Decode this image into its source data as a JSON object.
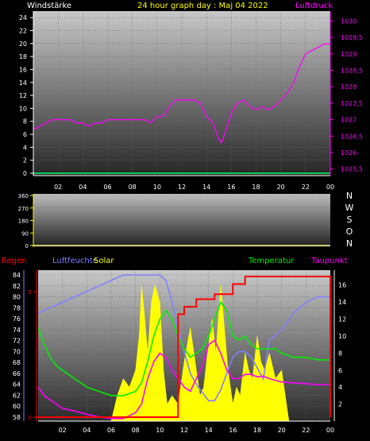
{
  "header": {
    "left_label": "Windstärke",
    "title": "24 hour graph day : Maj 04 2022",
    "right_label": "Luftdruck"
  },
  "colors": {
    "pressure": "#ff00ff",
    "wind": "#00ff66",
    "humidity": "#8080ff",
    "solar": "#ffff00",
    "temperature": "#00ee00",
    "dewpoint": "#ff00ff",
    "rain": "#ff0000",
    "header_left": "#ffffff",
    "header_title": "#ffff00",
    "header_right": "#ff00ff"
  },
  "chart_data": [
    {
      "type": "line",
      "x_ticks": [
        "02",
        "04",
        "06",
        "08",
        "10",
        "12",
        "14",
        "16",
        "18",
        "20",
        "22",
        "00"
      ],
      "y_left_ticks": [
        "0",
        "2",
        "4",
        "6",
        "8",
        "10",
        "12",
        "14",
        "16",
        "18",
        "20",
        "22",
        "24"
      ],
      "y_right_ticks": [
        "1025,5",
        "1026",
        "1026,5",
        "1027",
        "1027,5",
        "1028",
        "1028,5",
        "1029",
        "1029,5",
        "1030"
      ],
      "ylim_left": [
        0,
        25
      ],
      "ylim_right": [
        1025.3,
        1030.3
      ],
      "series": [
        {
          "name": "Luftdruck",
          "axis": "right",
          "x": [
            0,
            0.5,
            1,
            1.5,
            2,
            2.5,
            3,
            3.5,
            4,
            4.5,
            5,
            5.5,
            6,
            6.5,
            7,
            7.5,
            8,
            8.5,
            9,
            9.5,
            10,
            10.5,
            11,
            11.5,
            12,
            12.5,
            13,
            13.5,
            14,
            14.5,
            15,
            15.2,
            15.5,
            16,
            16.5,
            17,
            17.5,
            18,
            18.5,
            19,
            19.5,
            20,
            20.5,
            21,
            21.5,
            22,
            22.5,
            23,
            23.5,
            24
          ],
          "y": [
            1026.7,
            1026.8,
            1026.9,
            1027.0,
            1027.0,
            1027.0,
            1027.0,
            1026.9,
            1026.9,
            1026.8,
            1026.9,
            1026.9,
            1027.0,
            1027.0,
            1027.0,
            1027.0,
            1027.0,
            1027.0,
            1027.0,
            1026.9,
            1027.1,
            1027.1,
            1027.4,
            1027.6,
            1027.6,
            1027.6,
            1027.6,
            1027.5,
            1027.1,
            1026.9,
            1026.4,
            1026.3,
            1026.6,
            1027.2,
            1027.5,
            1027.6,
            1027.4,
            1027.3,
            1027.4,
            1027.3,
            1027.4,
            1027.6,
            1027.8,
            1028.1,
            1028.6,
            1029.0,
            1029.1,
            1029.2,
            1029.3,
            1029.3
          ]
        },
        {
          "name": "Windstärke",
          "axis": "left",
          "x": [
            0,
            24
          ],
          "y": [
            0,
            0
          ]
        }
      ]
    },
    {
      "type": "area",
      "y_ticks": [
        "0",
        "90",
        "180",
        "270",
        "360"
      ],
      "ylim": [
        0,
        360
      ],
      "direction_labels": [
        "N",
        "W",
        "S",
        "O",
        "N"
      ],
      "series": [
        {
          "name": "Windrichtung",
          "x": [
            0,
            24
          ],
          "y": [
            0,
            0
          ]
        }
      ]
    },
    {
      "type": "line",
      "x_ticks": [
        "02",
        "04",
        "06",
        "08",
        "10",
        "12",
        "14",
        "16",
        "18",
        "20",
        "22",
        "00"
      ],
      "y_left_ticks": [
        "58",
        "60",
        "62",
        "64",
        "66",
        "68",
        "70",
        "72",
        "74",
        "76",
        "78",
        "80",
        "82",
        "84"
      ],
      "y_right_ticks": [
        "2",
        "4",
        "6",
        "8",
        "10",
        "12",
        "14",
        "16"
      ],
      "rain_ticks": [
        "5",
        "0"
      ],
      "legend": [
        "Regen",
        "Luftfeuchte",
        "Solar",
        "Temperatur",
        "Taupunkt"
      ],
      "series": [
        {
          "name": "Luftfeuchte",
          "axis": "left",
          "x": [
            0,
            1,
            2,
            3,
            4,
            5,
            6,
            7,
            8,
            9,
            10,
            10.5,
            11,
            11.5,
            12,
            12.5,
            13,
            14,
            14.5,
            15,
            15.5,
            16,
            16.5,
            17,
            17.5,
            18,
            18.5,
            19,
            20,
            21,
            22,
            23,
            24
          ],
          "y": [
            77,
            78,
            79,
            80,
            81,
            82,
            83,
            84,
            84,
            84,
            84,
            83,
            79,
            74,
            70,
            66,
            64,
            61,
            61,
            63,
            66,
            69,
            70,
            70,
            69,
            67,
            65,
            72,
            74,
            77,
            79,
            80,
            80
          ]
        },
        {
          "name": "Temperatur",
          "axis": "right",
          "x": [
            0,
            0.5,
            1,
            1.5,
            2,
            3,
            4,
            5,
            6,
            7,
            8,
            8.5,
            9,
            9.5,
            10,
            10.5,
            11,
            11.5,
            12,
            12.5,
            13,
            13.5,
            14,
            14.5,
            15,
            15.5,
            16,
            16.5,
            17,
            17.5,
            18,
            18.5,
            19,
            19.5,
            20,
            21,
            22,
            23,
            24
          ],
          "y": [
            11,
            9,
            7.5,
            6.5,
            6,
            5,
            4,
            3.5,
            3,
            3,
            3.5,
            4.5,
            7,
            10,
            12,
            13,
            12,
            10,
            8.5,
            7.5,
            8,
            8.5,
            10,
            12,
            14,
            13,
            10,
            9.5,
            10,
            9,
            8.5,
            8.5,
            8.5,
            8.5,
            8,
            7.5,
            7.5,
            7.2,
            7.2
          ]
        },
        {
          "name": "Taupunkt",
          "axis": "right",
          "x": [
            0,
            0.5,
            1,
            1.5,
            2,
            3,
            4,
            5,
            6,
            7,
            8,
            8.5,
            9,
            9.5,
            10,
            10.5,
            11,
            11.5,
            12,
            12.5,
            13,
            13.5,
            14,
            14.5,
            15,
            15.5,
            16,
            16.5,
            17,
            17.5,
            18,
            18.5,
            19,
            19.5,
            20,
            21,
            22,
            23,
            24
          ],
          "y": [
            4,
            3,
            2.5,
            2,
            1.5,
            1.2,
            0.8,
            0.5,
            0.3,
            0.3,
            1,
            2,
            5,
            7,
            8,
            7.5,
            6,
            5,
            4,
            3.5,
            5,
            6.5,
            9,
            9.5,
            8,
            6,
            5,
            5,
            5.5,
            5.5,
            5.2,
            5.3,
            5,
            4.8,
            4.6,
            4.5,
            4.4,
            4.3,
            4.3
          ]
        },
        {
          "name": "Regen",
          "axis": "rain",
          "x": [
            0,
            11.5,
            11.5,
            12,
            12,
            13,
            13,
            14.5,
            14.5,
            16,
            16,
            17,
            17,
            24,
            24
          ],
          "y": [
            0,
            0,
            4.1,
            4.1,
            4.4,
            4.4,
            4.7,
            4.7,
            4.9,
            4.9,
            5.3,
            5.3,
            5.6,
            5.6,
            0
          ]
        },
        {
          "name": "Solar",
          "axis": "right",
          "x": [
            6,
            6.5,
            7,
            7.5,
            8,
            8.3,
            8.5,
            8.7,
            9,
            9.3,
            9.6,
            10,
            10.3,
            10.6,
            11,
            11.5,
            12,
            12.5,
            13,
            13.3,
            13.6,
            14,
            14.3,
            14.6,
            15,
            15.3,
            15.6,
            16,
            16.3,
            16.6,
            17,
            17.3,
            17.6,
            18,
            18.3,
            18.6,
            19,
            19.5,
            20,
            20.3,
            20.6
          ],
          "y": [
            0,
            3,
            5,
            4,
            6,
            10,
            16,
            13,
            8,
            14,
            16,
            14,
            6,
            2,
            3,
            2,
            7,
            11,
            6,
            3,
            4,
            9,
            12,
            8,
            16,
            11,
            6,
            2,
            4,
            3,
            8,
            6,
            5,
            10,
            7,
            6,
            8,
            5,
            6,
            3,
            0
          ]
        }
      ]
    }
  ]
}
